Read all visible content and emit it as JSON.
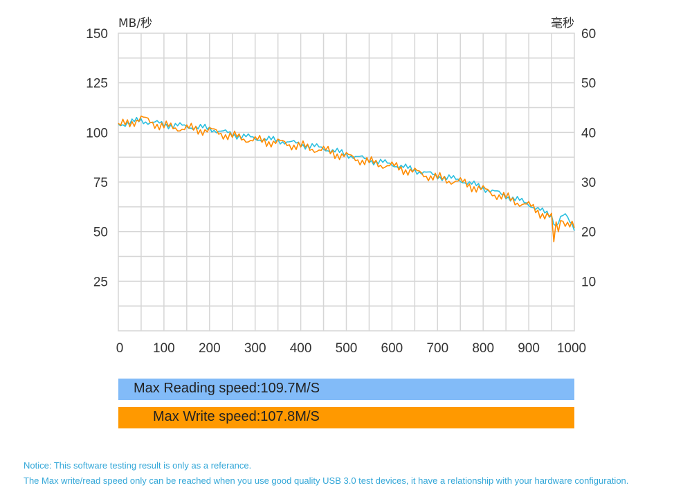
{
  "chart_data": {
    "type": "line",
    "y_left_label": "MB/秒",
    "y_right_label": "毫秒",
    "x_ticks": [
      0,
      100,
      200,
      300,
      400,
      500,
      600,
      700,
      800,
      900,
      1000
    ],
    "y_left_ticks": [
      25,
      50,
      75,
      100,
      125,
      150
    ],
    "y_right_ticks": [
      10,
      20,
      30,
      40,
      50,
      60
    ],
    "xlim": [
      0,
      1000
    ],
    "ylim_left": [
      0,
      150
    ],
    "ylim_right": [
      0,
      60
    ],
    "grid": true,
    "series": [
      {
        "color": "#2bbfe0",
        "x": [
          0,
          50,
          100,
          150,
          200,
          250,
          300,
          350,
          400,
          450,
          500,
          550,
          600,
          650,
          700,
          750,
          800,
          850,
          900,
          930,
          950,
          960,
          970,
          980,
          1000
        ],
        "y": [
          104,
          106,
          104,
          103,
          102,
          99,
          97,
          96,
          94,
          92,
          89,
          86,
          84,
          81,
          78,
          76,
          72,
          68,
          64,
          60,
          58,
          53,
          57,
          58,
          52
        ]
      },
      {
        "color": "#ff8c00",
        "x": [
          0,
          50,
          100,
          150,
          200,
          250,
          300,
          350,
          400,
          450,
          500,
          550,
          600,
          650,
          700,
          750,
          800,
          850,
          900,
          930,
          950,
          955,
          960,
          965,
          970,
          980,
          1000
        ],
        "y": [
          103,
          107,
          103,
          102,
          101,
          98,
          96,
          95,
          93,
          91,
          88,
          85,
          83,
          80,
          77,
          75,
          71,
          67,
          63,
          59,
          57,
          44,
          54,
          50,
          57,
          55,
          52
        ]
      }
    ]
  },
  "speed_bars": {
    "read": "Max Reading speed:109.7M/S",
    "write": "Max Write speed:107.8M/S",
    "read_color": "#82bbf8",
    "write_color": "#ff9900"
  },
  "notice": {
    "line1": "Notice: This software testing result is only as a referance.",
    "line2": "The Max write/read speed only can be reached when you use good quality USB 3.0 test devices, it have a relationship with your hardware configuration."
  }
}
